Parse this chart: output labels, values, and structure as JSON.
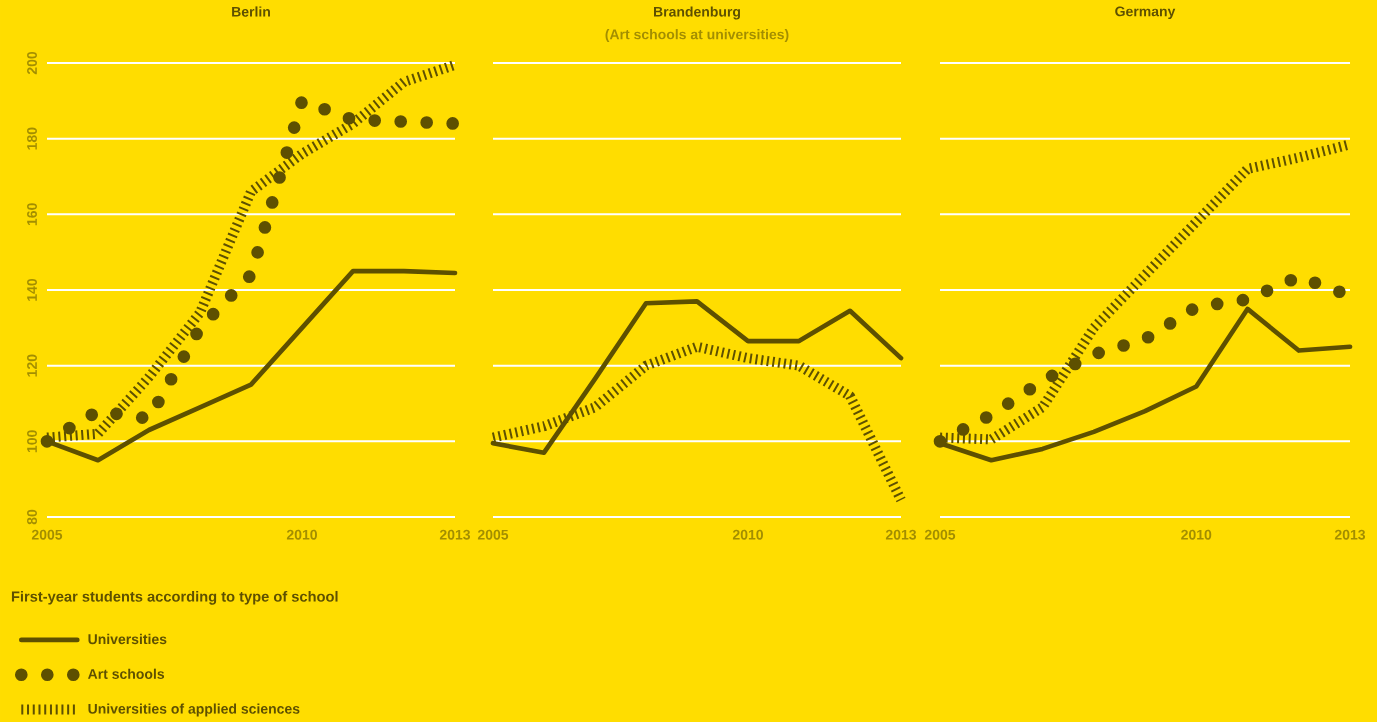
{
  "chart_data": [
    {
      "type": "line",
      "title": "Berlin",
      "x": [
        2005,
        2006,
        2007,
        2008,
        2009,
        2010,
        2011,
        2012,
        2013
      ],
      "xlim": [
        2005,
        2013
      ],
      "xticks": [
        2005,
        2010,
        2013
      ],
      "ylim": [
        80,
        200
      ],
      "yticks": [
        80,
        100,
        120,
        140,
        160,
        180,
        200
      ],
      "grid": "y",
      "legend": "bottom",
      "legend_title": "First-year students according to type of school",
      "series": [
        {
          "name": "Universities",
          "color": "#5e5000",
          "line_style": "solid",
          "values": [
            100,
            95,
            103,
            109,
            115,
            130,
            145,
            145,
            144.5
          ]
        },
        {
          "name": "Art schools",
          "color": "#5e5000",
          "line_style": "dotted",
          "values": [
            100,
            108,
            106,
            130,
            144,
            190,
            185,
            184.5,
            184
          ]
        },
        {
          "name": "Universities of applied sciences",
          "color": "#5e5000",
          "line_style": "dashed",
          "values": [
            101,
            102,
            117,
            134,
            166,
            176,
            184,
            195,
            199.5
          ]
        }
      ]
    },
    {
      "type": "line",
      "title": "Brandenburg",
      "subtitle": "(Art schools at universities)",
      "x": [
        2005,
        2006,
        2007,
        2008,
        2009,
        2010,
        2011,
        2012,
        2013
      ],
      "xlim": [
        2005,
        2013
      ],
      "xticks": [
        2005,
        2010,
        2013
      ],
      "ylim": [
        80,
        200
      ],
      "yticks": [
        80,
        100,
        120,
        140,
        160,
        180,
        200
      ],
      "grid": "y",
      "tick_labels": "x",
      "series": [
        {
          "color": "#5e5000",
          "line_style": "solid",
          "values": [
            99.5,
            97,
            116.5,
            136.5,
            137,
            126.5,
            126.5,
            134.5,
            122
          ]
        },
        {
          "color": "#5e5000",
          "line_style": "dashed",
          "values": [
            101,
            104,
            109,
            120,
            125,
            122,
            120,
            112,
            84.5
          ]
        }
      ]
    },
    {
      "type": "line",
      "title": "Germany",
      "x": [
        2005,
        2006,
        2007,
        2008,
        2009,
        2010,
        2011,
        2012,
        2013
      ],
      "xlim": [
        2005,
        2013
      ],
      "xticks": [
        2005,
        2010,
        2013
      ],
      "ylim": [
        80,
        200
      ],
      "yticks": [
        80,
        100,
        120,
        140,
        160,
        180,
        200
      ],
      "grid": "y",
      "tick_labels": "x",
      "series": [
        {
          "color": "#5e5000",
          "line_style": "solid",
          "values": [
            99.5,
            95,
            98,
            102.5,
            108,
            114.5,
            135,
            124,
            125
          ]
        },
        {
          "color": "#5e5000",
          "line_style": "dotted",
          "values": [
            100,
            107,
            116,
            123,
            127,
            135.5,
            137.5,
            143.5,
            138.5
          ]
        },
        {
          "color": "#5e5000",
          "line_style": "dashed",
          "values": [
            101,
            100.5,
            109,
            130,
            144,
            158,
            172,
            175,
            178.5
          ]
        }
      ]
    }
  ]
}
